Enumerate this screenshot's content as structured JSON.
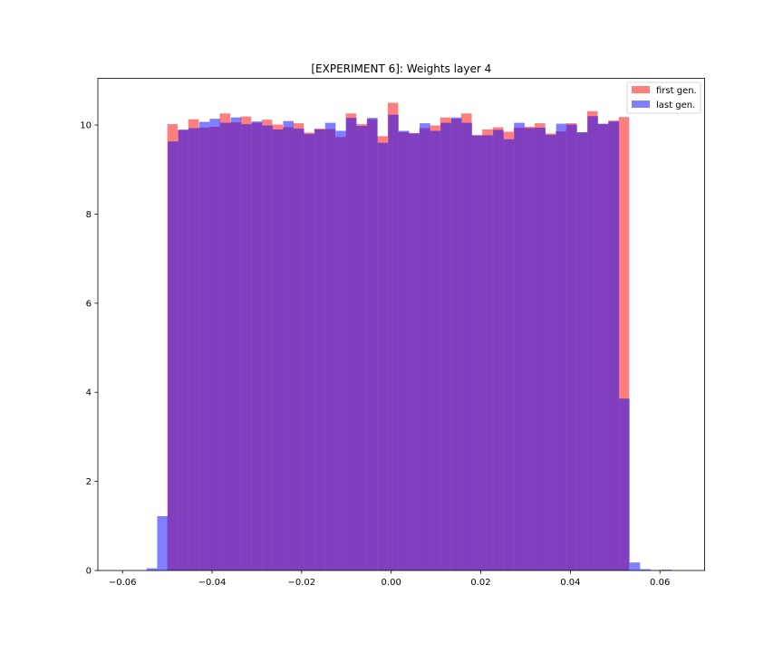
{
  "chart_data": {
    "type": "bar",
    "title": "[EXPERIMENT 6]: Weights layer 4",
    "xlabel": "",
    "ylabel": "",
    "xlim": [
      -0.0655,
      0.07
    ],
    "ylim": [
      0,
      11.05
    ],
    "xticks": [
      -0.06,
      -0.04,
      -0.02,
      0.0,
      0.02,
      0.04,
      0.06
    ],
    "xtick_labels": [
      "−0.06",
      "−0.04",
      "−0.02",
      "0.00",
      "0.02",
      "0.04",
      "0.06"
    ],
    "yticks": [
      0,
      2,
      4,
      6,
      8,
      10
    ],
    "ytick_labels": [
      "0",
      "2",
      "4",
      "6",
      "8",
      "10"
    ],
    "legend_position": "top-right",
    "grid": false,
    "series": [
      {
        "name": "first gen.",
        "color": "#ff0000",
        "alpha": 0.5,
        "bin_start": -0.05,
        "bin_width": 0.002344,
        "values": [
          10.02,
          9.88,
          10.13,
          9.94,
          9.96,
          10.26,
          10.06,
          10.19,
          10.05,
          10.12,
          10.01,
          9.95,
          10.04,
          9.83,
          9.92,
          9.91,
          9.73,
          10.26,
          10.02,
          10.13,
          9.75,
          10.5,
          9.84,
          9.82,
          9.93,
          9.99,
          10.17,
          10.14,
          10.26,
          9.78,
          9.9,
          9.95,
          9.85,
          9.94,
          9.96,
          10.04,
          9.81,
          9.86,
          10.04,
          9.83,
          10.31,
          10.02,
          10.1,
          10.18
        ]
      },
      {
        "name": "last gen.",
        "color": "#0000ff",
        "alpha": 0.5,
        "bin_start": -0.0546,
        "bin_width": 0.002344,
        "values": [
          0.05,
          1.22,
          9.63,
          9.9,
          9.93,
          10.07,
          10.14,
          10.05,
          10.17,
          10.02,
          10.08,
          9.99,
          9.9,
          10.09,
          9.92,
          9.8,
          9.9,
          10.05,
          9.87,
          10.16,
          9.98,
          10.16,
          9.6,
          10.23,
          9.87,
          9.81,
          10.04,
          9.87,
          10.05,
          10.17,
          10.05,
          9.76,
          9.77,
          9.89,
          9.68,
          10.05,
          9.93,
          9.94,
          9.78,
          10.03,
          10.01,
          9.84,
          10.2,
          10.03,
          10.08,
          3.86,
          0.18,
          0.03,
          0.01,
          0.02
        ]
      }
    ]
  }
}
